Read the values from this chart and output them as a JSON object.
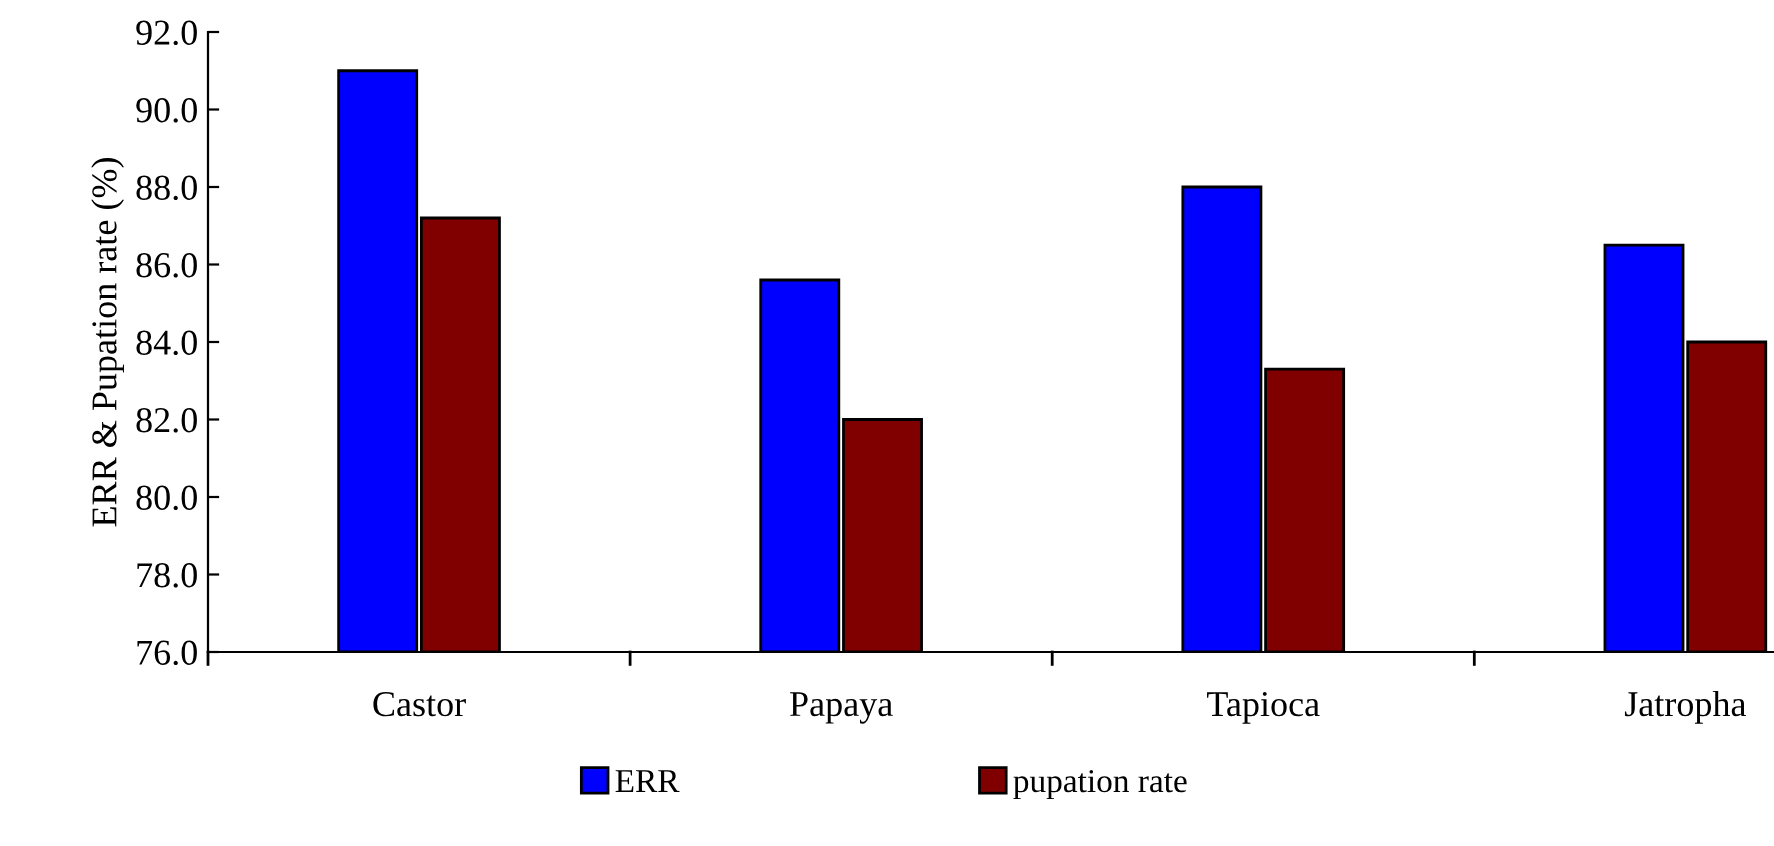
{
  "chart_data": {
    "type": "bar",
    "ylabel": "ERR & Pupation rate (%)",
    "categories": [
      "Castor",
      "Papaya",
      "Tapioca",
      "Jatropha"
    ],
    "series": [
      {
        "name": "ERR",
        "color": "#0000ff",
        "values": [
          91.0,
          85.6,
          88.0,
          86.5
        ]
      },
      {
        "name": "pupation rate",
        "color": "#800000",
        "values": [
          87.2,
          82.0,
          83.3,
          84.0
        ]
      }
    ],
    "ylim": [
      76.0,
      92.0
    ],
    "yticks": [
      {
        "value": 76,
        "label": "76.0"
      },
      {
        "value": 78,
        "label": "78.0"
      },
      {
        "value": 80,
        "label": "80.0"
      },
      {
        "value": 82,
        "label": "82.0"
      },
      {
        "value": 84,
        "label": "84.0"
      },
      {
        "value": 86,
        "label": "86.0"
      },
      {
        "value": 88,
        "label": "88.0"
      },
      {
        "value": 90,
        "label": "90.0"
      },
      {
        "value": 92,
        "label": "92.0"
      }
    ],
    "grid": false,
    "legend": "bottom"
  }
}
